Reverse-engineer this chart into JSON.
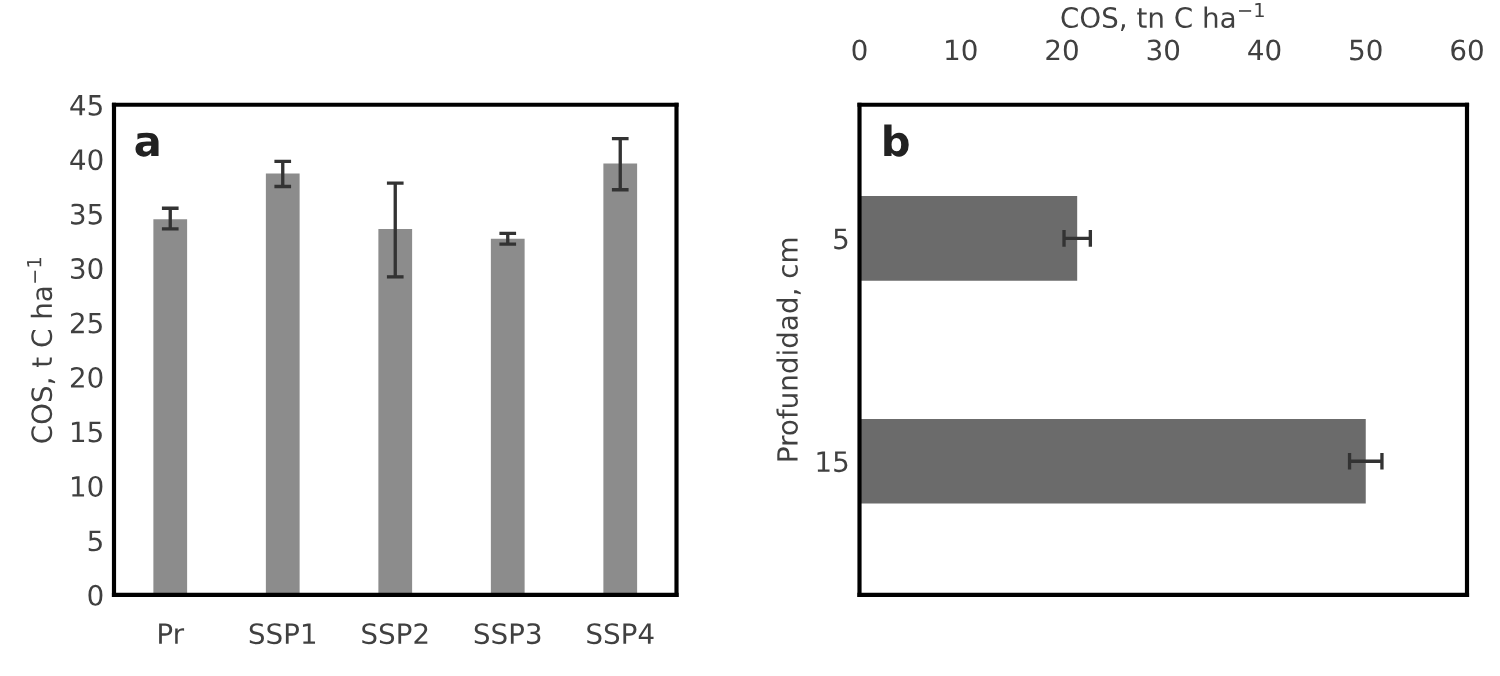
{
  "chart_data": [
    {
      "type": "bar",
      "categories": [
        "Pr",
        "SSP1",
        "SSP2",
        "SSP3",
        "SSP4"
      ],
      "ylabel": "COS, t C ha$^{−1}$",
      "annotations": [
        "a"
      ],
      "series": [
        {
          "color": "#8c8c8c",
          "values": [
            34.5,
            38.7,
            33.6,
            32.7,
            39.6
          ],
          "errors": [
            [
              33.6,
              35.5
            ],
            [
              37.5,
              39.8
            ],
            [
              29.2,
              37.8
            ],
            [
              32.2,
              33.2
            ],
            [
              37.2,
              41.9
            ]
          ]
        }
      ],
      "ylim": [
        0,
        45
      ],
      "yticks": [
        0,
        5,
        10,
        15,
        20,
        25,
        30,
        35,
        40,
        45
      ],
      "grid": false,
      "legend": false
    },
    {
      "type": "bar",
      "orientation": "horizontal",
      "categories": [
        "5",
        "15"
      ],
      "x2label": "COS, tn C ha$^{−1}$",
      "ylabel": "Profundidad, cm",
      "annotations": [
        "b"
      ],
      "series": [
        {
          "axis": "x2",
          "color": "#6b6b6b",
          "values": [
            21.5,
            50
          ],
          "errors": [
            [
              20.2,
              22.8
            ],
            [
              48.4,
              51.6
            ]
          ]
        }
      ],
      "x2lim": [
        0,
        60
      ],
      "x2ticks": [
        0,
        10,
        20,
        30,
        40,
        50,
        60
      ],
      "grid": false,
      "legend": false
    }
  ]
}
